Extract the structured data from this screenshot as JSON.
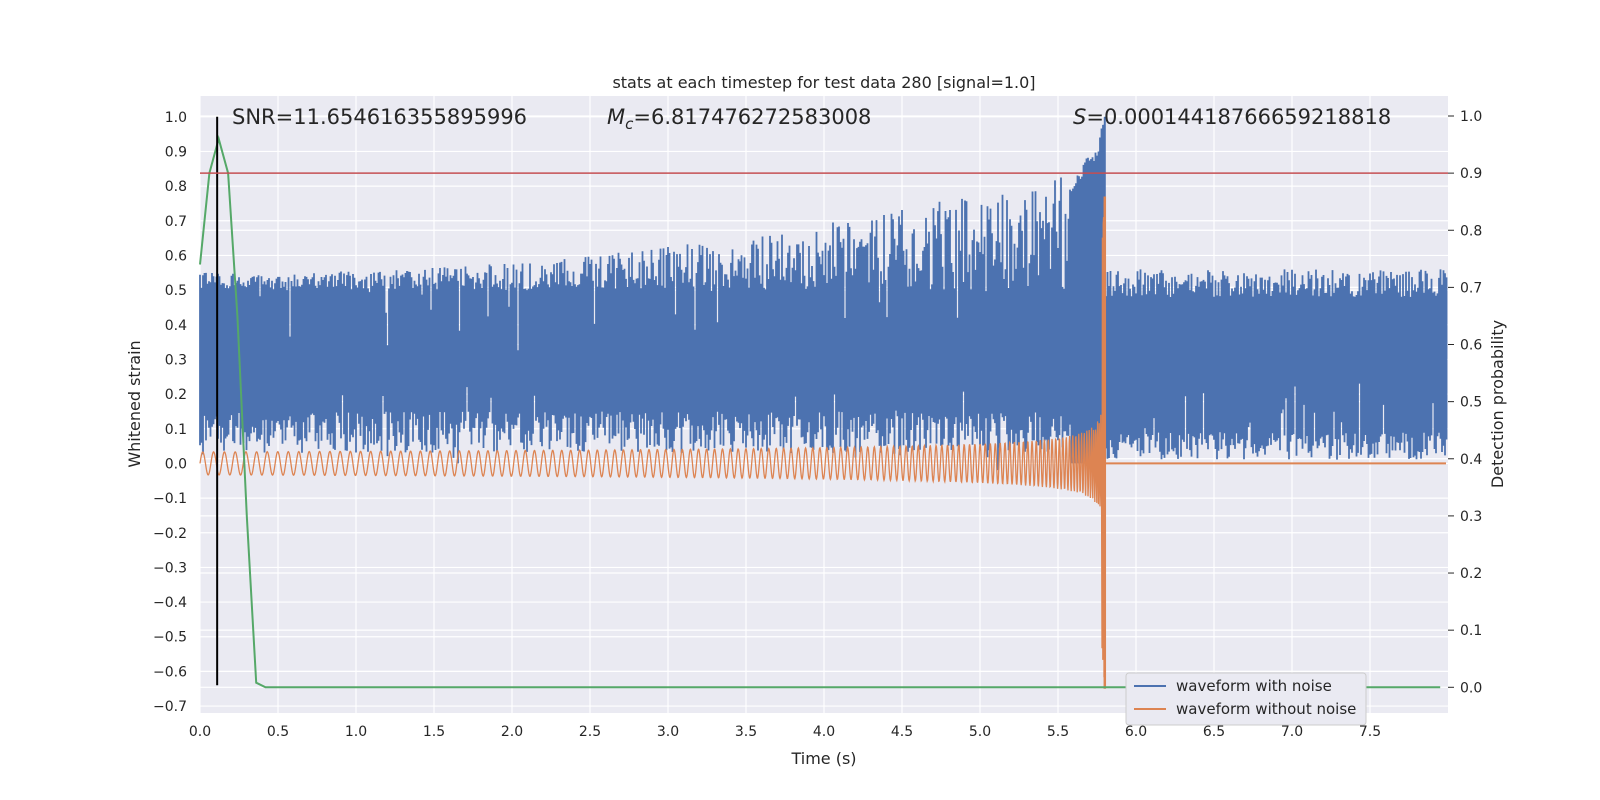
{
  "chart_data": {
    "type": "line",
    "title": "stats at each timestep for test data 280 [signal=1.0]",
    "xlabel": "Time (s)",
    "ylabel_left": "Whitened strain",
    "ylabel_right": "Detection probability",
    "xlim": [
      0.0,
      8.0
    ],
    "ylim_left": [
      -0.72,
      1.06
    ],
    "ylim_right": [
      -0.045,
      1.035
    ],
    "x_ticks": [
      "0.0",
      "0.5",
      "1.0",
      "1.5",
      "2.0",
      "2.5",
      "3.0",
      "3.5",
      "4.0",
      "4.5",
      "5.0",
      "5.5",
      "6.0",
      "6.5",
      "7.0",
      "7.5"
    ],
    "y_ticks_left": [
      "1.0",
      "0.9",
      "0.8",
      "0.7",
      "0.6",
      "0.5",
      "0.4",
      "0.3",
      "0.2",
      "0.1",
      "0.0",
      "−0.1",
      "−0.2",
      "−0.3",
      "−0.4",
      "−0.5",
      "−0.6",
      "−0.7"
    ],
    "y_ticks_right": [
      "1.0",
      "0.9",
      "0.8",
      "0.7",
      "0.6",
      "0.5",
      "0.4",
      "0.3",
      "0.2",
      "0.1",
      "0.0"
    ],
    "grid": true,
    "legend_position": "bottom-right",
    "annotations": {
      "snr": "SNR=11.654616355895996",
      "mc_symbol": "M",
      "mc_sub": "c",
      "mc_value": "=6.817476272583008",
      "s_symbol": "S",
      "s_value": "=0.00014418766659218818"
    },
    "series": [
      {
        "name": "waveform with noise",
        "color": "#4c72b0",
        "axis": "left",
        "description_values": {
          "baseline_low": 0.05,
          "baseline_high": 0.5,
          "peak_time": 5.8,
          "peak_value": 1.0
        }
      },
      {
        "name": "waveform without noise",
        "color": "#dd8452",
        "axis": "left",
        "description_values": {
          "initial_amplitude": 0.04,
          "merger_time": 5.8,
          "merger_max": 0.77,
          "merger_min": -0.65,
          "post_merger_value": 0.0
        }
      },
      {
        "name": "",
        "color": "#55a868",
        "axis": "right",
        "x": [
          0.0,
          0.06,
          0.12,
          0.18,
          0.24,
          0.3,
          0.36,
          0.42,
          0.6,
          1.0,
          2.0,
          3.0,
          4.0,
          5.0,
          6.0,
          7.0,
          7.95
        ],
        "values": [
          0.74,
          0.9,
          0.96,
          0.9,
          0.65,
          0.3,
          0.008,
          0.0,
          0.0,
          0.0,
          0.0,
          0.0,
          0.0,
          0.0,
          0.0,
          0.0,
          0.0
        ]
      }
    ],
    "reference_lines": [
      {
        "orientation": "vertical",
        "axis": "left",
        "x": 0.11,
        "from": -0.64,
        "to": 1.0,
        "color": "#000000"
      },
      {
        "orientation": "horizontal",
        "axis": "right",
        "y": 0.9,
        "color": "#c44e52"
      }
    ]
  }
}
